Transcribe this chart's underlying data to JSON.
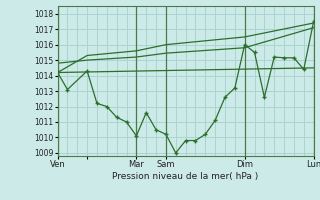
{
  "background_color": "#cceae7",
  "grid_color": "#aad4d0",
  "line_color": "#2d6e2d",
  "vline_color": "#4a7a4a",
  "xlim": [
    0,
    6.5
  ],
  "ylim": [
    1008.8,
    1018.5
  ],
  "yticks": [
    1009,
    1010,
    1011,
    1012,
    1013,
    1014,
    1015,
    1016,
    1017,
    1018
  ],
  "xlabel": "Pression niveau de la mer( hPa )",
  "vline_positions": [
    0.0,
    2.0,
    2.75,
    4.75,
    6.5
  ],
  "main_x": [
    0.0,
    0.25,
    0.75,
    1.0,
    1.25,
    1.5,
    1.75,
    2.0,
    2.25,
    2.5,
    2.75,
    3.0,
    3.25,
    3.5,
    3.75,
    4.0,
    4.25,
    4.5,
    4.75,
    5.0,
    5.25,
    5.5,
    5.75,
    6.0,
    6.25,
    6.5
  ],
  "main_y": [
    1014.2,
    1013.1,
    1014.3,
    1012.2,
    1012.0,
    1011.3,
    1011.0,
    1010.1,
    1011.6,
    1010.5,
    1010.2,
    1009.0,
    1009.8,
    1009.8,
    1010.2,
    1011.1,
    1012.6,
    1013.2,
    1016.0,
    1015.5,
    1012.6,
    1015.2,
    1015.15,
    1015.15,
    1014.4,
    1017.5
  ],
  "trend1_x": [
    0.0,
    6.5
  ],
  "trend1_y": [
    1014.2,
    1014.5
  ],
  "trend2_x": [
    0.0,
    0.75,
    2.0,
    2.75,
    4.75,
    6.5
  ],
  "trend2_y": [
    1014.8,
    1015.0,
    1015.2,
    1015.45,
    1015.8,
    1017.1
  ],
  "trend3_x": [
    0.0,
    0.75,
    2.0,
    2.75,
    4.75,
    6.5
  ],
  "trend3_y": [
    1014.2,
    1015.3,
    1015.6,
    1016.0,
    1016.5,
    1017.4
  ],
  "xtick_positions": [
    0.0,
    0.75,
    2.0,
    2.75,
    4.75,
    6.5
  ],
  "xtick_labels": [
    "Ven",
    "",
    "Mar",
    "Sam",
    "Dim",
    "Lun"
  ]
}
